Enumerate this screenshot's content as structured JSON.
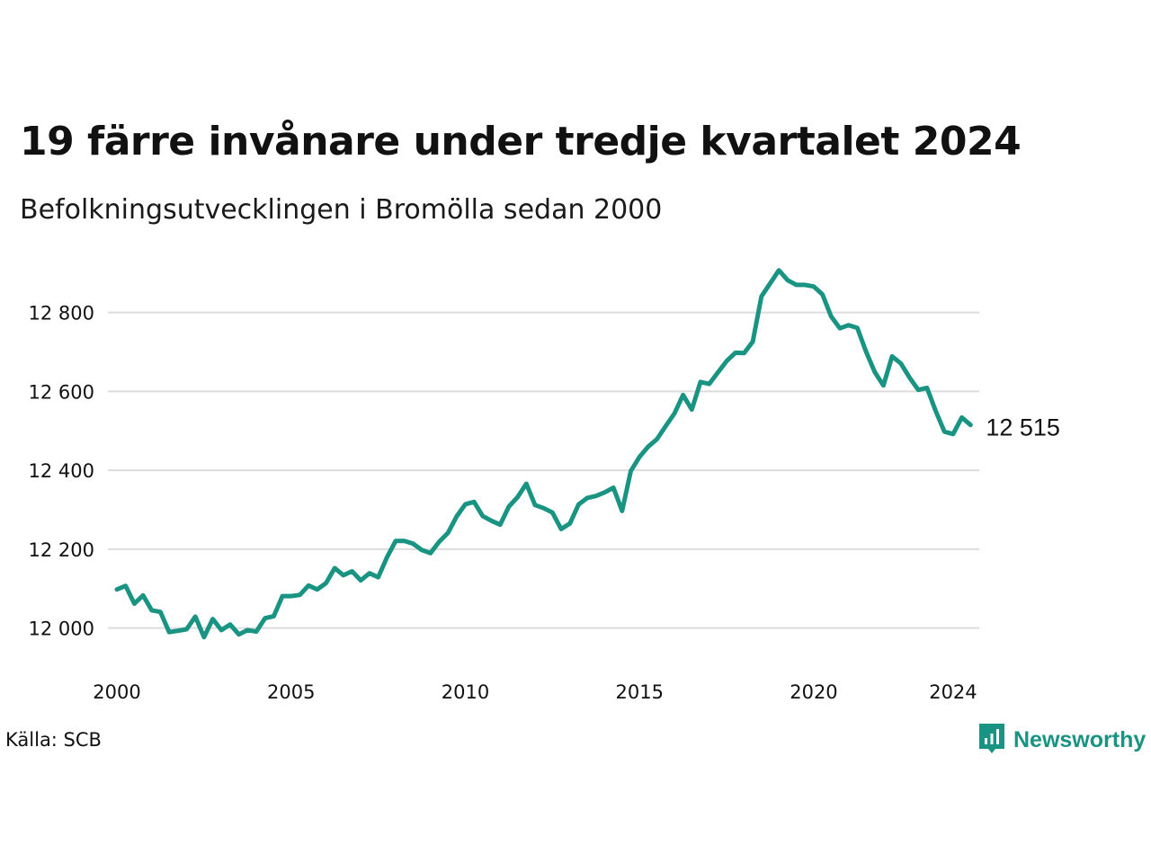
{
  "title": "19 färre invånare under tredje kvartalet 2024",
  "subtitle": "Befolkningsutvecklingen i Bromölla sedan 2000",
  "source": "Källa: SCB",
  "brand": "Newsworthy",
  "colors": {
    "line": "#1a9482",
    "grid": "#dcdcdc",
    "text": "#111111",
    "brand": "#1a9482"
  },
  "chart_data": {
    "type": "line",
    "title": "19 färre invånare under tredje kvartalet 2024",
    "subtitle": "Befolkningsutvecklingen i Bromölla sedan 2000",
    "xlabel": "",
    "ylabel": "",
    "xlim": [
      2000,
      2024.75
    ],
    "ylim": [
      11940,
      12920
    ],
    "xticks": [
      2000,
      2005,
      2010,
      2015,
      2020,
      2024
    ],
    "xtick_labels": [
      "2000",
      "2005",
      "2010",
      "2015",
      "2020",
      "2024"
    ],
    "yticks": [
      12000,
      12200,
      12400,
      12600,
      12800
    ],
    "ytick_labels": [
      "12 000",
      "12 200",
      "12 400",
      "12 600",
      "12 800"
    ],
    "grid": true,
    "end_label": "12 515",
    "series": [
      {
        "x": [
          2000.0,
          2000.25,
          2000.5,
          2000.75,
          2001.0,
          2001.25,
          2001.5,
          2001.75,
          2002.0,
          2002.25,
          2002.5,
          2002.75,
          2003.0,
          2003.25,
          2003.5,
          2003.75,
          2004.0,
          2004.25,
          2004.5,
          2004.75,
          2005.0,
          2005.25,
          2005.5,
          2005.75,
          2006.0,
          2006.25,
          2006.5,
          2006.75,
          2007.0,
          2007.25,
          2007.5,
          2007.75,
          2008.0,
          2008.25,
          2008.5,
          2008.75,
          2009.0,
          2009.25,
          2009.5,
          2009.75,
          2010.0,
          2010.25,
          2010.5,
          2010.75,
          2011.0,
          2011.25,
          2011.5,
          2011.75,
          2012.0,
          2012.25,
          2012.5,
          2012.75,
          2013.0,
          2013.25,
          2013.5,
          2013.75,
          2014.0,
          2014.25,
          2014.5,
          2014.75,
          2015.0,
          2015.25,
          2015.5,
          2015.75,
          2016.0,
          2016.25,
          2016.5,
          2016.75,
          2017.0,
          2017.25,
          2017.5,
          2017.75,
          2018.0,
          2018.25,
          2018.5,
          2018.75,
          2019.0,
          2019.25,
          2019.5,
          2019.75,
          2020.0,
          2020.25,
          2020.5,
          2020.75,
          2021.0,
          2021.25,
          2021.5,
          2021.75,
          2022.0,
          2022.25,
          2022.5,
          2022.75,
          2023.0,
          2023.25,
          2023.5,
          2023.75,
          2024.0,
          2024.25,
          2024.5
        ],
        "y": [
          12098,
          12107,
          12062,
          12083,
          12045,
          12041,
          11990,
          11993,
          11997,
          12029,
          11977,
          12023,
          11995,
          12009,
          11984,
          11995,
          11991,
          12025,
          12030,
          12081,
          12081,
          12084,
          12108,
          12098,
          12114,
          12152,
          12134,
          12144,
          12121,
          12139,
          12129,
          12179,
          12221,
          12221,
          12214,
          12198,
          12190,
          12219,
          12241,
          12283,
          12314,
          12320,
          12284,
          12272,
          12262,
          12308,
          12332,
          12366,
          12312,
          12304,
          12293,
          12251,
          12265,
          12313,
          12330,
          12335,
          12344,
          12356,
          12297,
          12398,
          12434,
          12460,
          12479,
          12512,
          12544,
          12591,
          12554,
          12624,
          12619,
          12648,
          12677,
          12698,
          12697,
          12726,
          12841,
          12874,
          12907,
          12882,
          12870,
          12870,
          12866,
          12846,
          12790,
          12760,
          12768,
          12761,
          12701,
          12649,
          12615,
          12689,
          12671,
          12635,
          12604,
          12609,
          12550,
          12498,
          12492,
          12534,
          12515
        ]
      }
    ]
  }
}
